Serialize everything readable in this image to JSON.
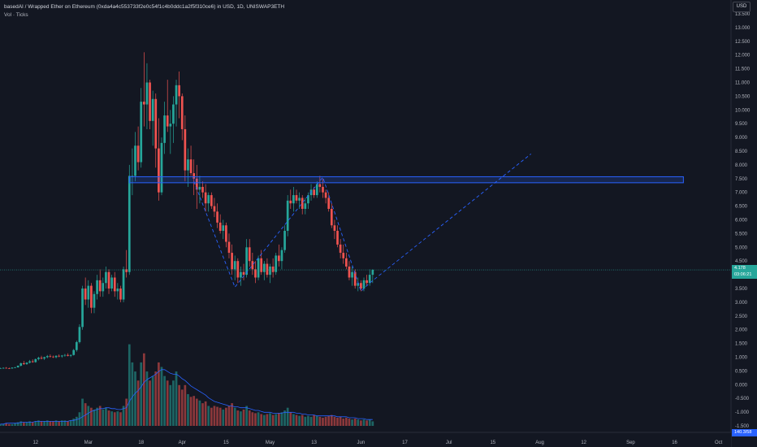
{
  "legend": {
    "title": "basedAI / Wrapped Ether on Ethereum (0xda4a4c553733f2e0c54f1c4b0ddc1a2f5f310ce6) in USD, 1D, UNISWAP3ETH",
    "subtitle": "Vol · Ticks"
  },
  "currency_button": "USD",
  "current_price": {
    "value": "4.178",
    "countdown": "03:06:21"
  },
  "volume_value": "140.3/58",
  "colors": {
    "up": "#26a69a",
    "down": "#ef5350",
    "up_volume": "#26a69a",
    "down_volume": "#ef5350",
    "drawing": "#2962ff",
    "volume_ma": "#2962ff",
    "background": "#131722"
  },
  "chart_data": {
    "type": "candlestick",
    "y_axis": {
      "min": -1.5,
      "max": 13.5,
      "step": 0.5,
      "labels": [
        "13.500",
        "13.000",
        "12.500",
        "12.000",
        "11.500",
        "11.000",
        "10.500",
        "10.000",
        "9.500",
        "9.000",
        "8.500",
        "8.000",
        "7.500",
        "7.000",
        "6.500",
        "6.000",
        "5.500",
        "5.000",
        "4.500",
        "4.000",
        "3.500",
        "3.000",
        "2.500",
        "2.000",
        "1.500",
        "1.000",
        "0.500",
        "0.000",
        "-0.500",
        "-1.000",
        "-1.500"
      ]
    },
    "x_axis": {
      "labels": [
        "12",
        "Mar",
        "18",
        "Apr",
        "15",
        "May",
        "13",
        "Jun",
        "17",
        "Jul",
        "15",
        "Aug",
        "12",
        "Sep",
        "16",
        "Oct"
      ],
      "label_days": [
        12,
        30,
        48,
        62,
        77,
        92,
        107,
        123,
        138,
        153,
        168,
        184,
        199,
        215,
        230,
        245
      ],
      "day_range": [
        0,
        248
      ]
    },
    "candles_note": "daily OHLC, day index from Feb 1",
    "candles": [
      [
        0,
        0.6,
        0.62,
        0.58,
        0.6
      ],
      [
        1,
        0.6,
        0.63,
        0.58,
        0.61
      ],
      [
        2,
        0.61,
        0.64,
        0.59,
        0.6
      ],
      [
        3,
        0.6,
        0.62,
        0.57,
        0.59
      ],
      [
        4,
        0.59,
        0.63,
        0.58,
        0.62
      ],
      [
        5,
        0.62,
        0.65,
        0.6,
        0.63
      ],
      [
        6,
        0.63,
        0.7,
        0.62,
        0.69
      ],
      [
        7,
        0.69,
        0.8,
        0.66,
        0.78
      ],
      [
        8,
        0.78,
        0.86,
        0.72,
        0.75
      ],
      [
        9,
        0.75,
        0.82,
        0.72,
        0.8
      ],
      [
        10,
        0.8,
        0.9,
        0.77,
        0.85
      ],
      [
        11,
        0.85,
        0.92,
        0.8,
        0.82
      ],
      [
        12,
        0.82,
        0.95,
        0.8,
        0.93
      ],
      [
        13,
        0.93,
        1.02,
        0.88,
        0.98
      ],
      [
        14,
        0.98,
        1.05,
        0.92,
        0.95
      ],
      [
        15,
        0.95,
        1.02,
        0.9,
        1.0
      ],
      [
        16,
        1.0,
        1.08,
        0.96,
        1.04
      ],
      [
        17,
        1.04,
        1.1,
        0.98,
        1.02
      ],
      [
        18,
        1.02,
        1.06,
        0.97,
        1.0
      ],
      [
        19,
        1.0,
        1.07,
        0.96,
        1.05
      ],
      [
        20,
        1.05,
        1.1,
        1.0,
        1.03
      ],
      [
        21,
        1.03,
        1.08,
        0.98,
        1.06
      ],
      [
        22,
        1.06,
        1.12,
        1.02,
        1.08
      ],
      [
        23,
        1.08,
        1.14,
        1.03,
        1.05
      ],
      [
        24,
        1.05,
        1.1,
        1.0,
        1.08
      ],
      [
        25,
        1.08,
        1.3,
        1.06,
        1.26
      ],
      [
        26,
        1.26,
        1.6,
        1.2,
        1.55
      ],
      [
        27,
        1.55,
        2.2,
        1.5,
        2.1
      ],
      [
        28,
        2.1,
        3.6,
        2.0,
        3.5
      ],
      [
        29,
        3.5,
        3.9,
        2.9,
        3.1
      ],
      [
        30,
        3.1,
        3.8,
        2.8,
        3.6
      ],
      [
        31,
        3.6,
        3.7,
        2.6,
        2.8
      ],
      [
        32,
        2.8,
        3.4,
        2.6,
        3.3
      ],
      [
        33,
        3.3,
        4.0,
        3.1,
        3.8
      ],
      [
        34,
        3.8,
        4.2,
        3.2,
        3.4
      ],
      [
        35,
        3.4,
        3.9,
        3.2,
        3.7
      ],
      [
        36,
        3.7,
        4.3,
        3.5,
        4.1
      ],
      [
        37,
        4.1,
        4.2,
        3.3,
        3.5
      ],
      [
        38,
        3.5,
        4.0,
        3.4,
        3.9
      ],
      [
        39,
        3.9,
        4.1,
        3.2,
        3.4
      ],
      [
        40,
        3.4,
        3.7,
        3.1,
        3.5
      ],
      [
        41,
        3.5,
        3.6,
        3.0,
        3.1
      ],
      [
        42,
        3.1,
        4.3,
        3.0,
        4.2
      ],
      [
        43,
        4.2,
        4.9,
        3.9,
        4.1
      ],
      [
        44,
        4.1,
        8.0,
        4.0,
        7.6
      ],
      [
        45,
        7.6,
        8.6,
        6.9,
        7.6
      ],
      [
        46,
        7.6,
        9.2,
        7.4,
        8.7
      ],
      [
        47,
        8.7,
        9.4,
        7.8,
        8.1
      ],
      [
        48,
        8.1,
        10.8,
        7.9,
        10.3
      ],
      [
        49,
        10.3,
        12.1,
        9.4,
        10.2
      ],
      [
        50,
        10.2,
        11.7,
        9.3,
        11.0
      ],
      [
        51,
        11.0,
        11.1,
        9.3,
        9.6
      ],
      [
        52,
        9.6,
        10.7,
        8.7,
        10.4
      ],
      [
        53,
        10.4,
        10.6,
        7.9,
        8.6
      ],
      [
        54,
        8.6,
        9.7,
        6.7,
        7.0
      ],
      [
        55,
        7.0,
        9.0,
        6.9,
        8.8
      ],
      [
        56,
        8.8,
        10.3,
        8.4,
        9.8
      ],
      [
        57,
        9.8,
        11.1,
        9.2,
        9.4
      ],
      [
        58,
        9.4,
        10.0,
        8.4,
        9.5
      ],
      [
        59,
        9.5,
        10.5,
        8.8,
        10.2
      ],
      [
        60,
        10.2,
        11.1,
        9.4,
        10.9
      ],
      [
        61,
        10.9,
        11.4,
        9.7,
        10.5
      ],
      [
        62,
        10.5,
        10.6,
        8.9,
        9.3
      ],
      [
        63,
        9.3,
        9.8,
        7.4,
        7.8
      ],
      [
        64,
        7.8,
        8.6,
        7.2,
        8.2
      ],
      [
        65,
        8.2,
        8.7,
        7.6,
        7.7
      ],
      [
        66,
        7.7,
        8.2,
        6.9,
        7.5
      ],
      [
        67,
        7.5,
        8.0,
        6.4,
        7.1
      ],
      [
        68,
        7.1,
        7.6,
        6.6,
        7.2
      ],
      [
        69,
        7.2,
        7.4,
        6.8,
        7.0
      ],
      [
        70,
        7.0,
        7.3,
        6.3,
        6.6
      ],
      [
        71,
        6.6,
        7.0,
        6.3,
        6.9
      ],
      [
        72,
        6.9,
        7.0,
        6.4,
        6.5
      ],
      [
        73,
        6.5,
        6.8,
        6.1,
        6.3
      ],
      [
        74,
        6.3,
        6.6,
        5.7,
        5.9
      ],
      [
        75,
        5.9,
        6.2,
        5.5,
        5.6
      ],
      [
        76,
        5.6,
        6.0,
        5.3,
        5.8
      ],
      [
        77,
        5.8,
        5.9,
        5.0,
        5.2
      ],
      [
        78,
        5.2,
        5.5,
        4.6,
        4.8
      ],
      [
        79,
        4.8,
        5.1,
        4.0,
        4.2
      ],
      [
        80,
        4.2,
        4.7,
        3.8,
        4.5
      ],
      [
        81,
        4.5,
        4.6,
        3.7,
        3.9
      ],
      [
        82,
        3.9,
        4.3,
        3.6,
        4.1
      ],
      [
        83,
        4.1,
        4.4,
        3.8,
        4.0
      ],
      [
        84,
        4.0,
        5.3,
        3.9,
        5.0
      ],
      [
        85,
        5.0,
        5.3,
        4.3,
        4.5
      ],
      [
        86,
        4.5,
        4.8,
        4.0,
        4.2
      ],
      [
        87,
        4.2,
        4.5,
        3.7,
        3.9
      ],
      [
        88,
        3.9,
        4.7,
        3.8,
        4.6
      ],
      [
        89,
        4.6,
        4.9,
        4.0,
        4.1
      ],
      [
        90,
        4.1,
        4.5,
        3.8,
        4.4
      ],
      [
        91,
        4.4,
        4.6,
        3.9,
        4.0
      ],
      [
        92,
        4.0,
        4.4,
        3.7,
        4.3
      ],
      [
        93,
        4.3,
        4.6,
        3.9,
        4.1
      ],
      [
        94,
        4.1,
        4.8,
        4.0,
        4.7
      ],
      [
        95,
        4.7,
        5.1,
        4.3,
        4.5
      ],
      [
        96,
        4.5,
        5.0,
        4.2,
        4.9
      ],
      [
        97,
        4.9,
        5.8,
        4.8,
        5.6
      ],
      [
        98,
        5.6,
        6.9,
        5.4,
        6.7
      ],
      [
        99,
        6.7,
        7.1,
        6.4,
        6.6
      ],
      [
        100,
        6.6,
        7.2,
        6.3,
        6.9
      ],
      [
        101,
        6.9,
        7.1,
        6.6,
        6.7
      ],
      [
        102,
        6.7,
        7.0,
        6.4,
        6.8
      ],
      [
        103,
        6.8,
        6.9,
        6.2,
        6.4
      ],
      [
        104,
        6.4,
        6.8,
        6.2,
        6.6
      ],
      [
        105,
        6.6,
        7.0,
        6.4,
        6.9
      ],
      [
        106,
        6.9,
        7.3,
        6.7,
        7.1
      ],
      [
        107,
        7.1,
        7.2,
        6.8,
        6.9
      ],
      [
        108,
        6.9,
        7.4,
        6.8,
        7.3
      ],
      [
        109,
        7.3,
        7.6,
        7.0,
        7.2
      ],
      [
        110,
        7.2,
        7.5,
        6.8,
        7.0
      ],
      [
        111,
        7.0,
        7.1,
        6.6,
        6.8
      ],
      [
        112,
        6.8,
        7.0,
        6.3,
        6.4
      ],
      [
        113,
        6.4,
        6.6,
        5.7,
        5.8
      ],
      [
        114,
        5.8,
        6.0,
        5.3,
        5.6
      ],
      [
        115,
        5.6,
        5.8,
        5.0,
        5.1
      ],
      [
        116,
        5.1,
        5.3,
        4.6,
        4.8
      ],
      [
        117,
        4.8,
        5.1,
        4.4,
        4.6
      ],
      [
        118,
        4.6,
        4.8,
        4.2,
        4.3
      ],
      [
        119,
        4.3,
        4.5,
        3.8,
        3.9
      ],
      [
        120,
        3.9,
        4.3,
        3.6,
        4.1
      ],
      [
        121,
        4.1,
        4.2,
        3.5,
        3.6
      ],
      [
        122,
        3.6,
        3.9,
        3.4,
        3.7
      ],
      [
        123,
        3.7,
        3.8,
        3.4,
        3.5
      ],
      [
        124,
        3.5,
        3.9,
        3.4,
        3.8
      ],
      [
        125,
        3.8,
        4.0,
        3.6,
        3.7
      ],
      [
        126,
        3.7,
        4.2,
        3.6,
        4.0
      ],
      [
        127,
        4.0,
        4.2,
        3.7,
        4.18
      ]
    ],
    "volume_note": "volume bars in price-axis units for overlay (baseline -1.5)",
    "volume": [
      0.02,
      0.02,
      0.03,
      0.02,
      0.02,
      0.03,
      0.04,
      0.05,
      0.04,
      0.04,
      0.05,
      0.04,
      0.05,
      0.06,
      0.05,
      0.05,
      0.06,
      0.05,
      0.05,
      0.06,
      0.05,
      0.06,
      0.06,
      0.05,
      0.06,
      0.08,
      0.1,
      0.15,
      0.3,
      0.25,
      0.22,
      0.2,
      0.18,
      0.2,
      0.22,
      0.18,
      0.2,
      0.17,
      0.16,
      0.15,
      0.16,
      0.15,
      0.22,
      0.3,
      0.9,
      0.7,
      0.6,
      0.5,
      0.7,
      0.8,
      0.6,
      0.5,
      0.55,
      0.6,
      0.7,
      0.65,
      0.55,
      0.5,
      0.45,
      0.5,
      0.6,
      0.45,
      0.4,
      0.45,
      0.35,
      0.32,
      0.33,
      0.3,
      0.28,
      0.25,
      0.27,
      0.22,
      0.2,
      0.22,
      0.21,
      0.2,
      0.18,
      0.2,
      0.22,
      0.25,
      0.2,
      0.17,
      0.16,
      0.18,
      0.22,
      0.17,
      0.15,
      0.14,
      0.15,
      0.13,
      0.12,
      0.13,
      0.14,
      0.12,
      0.13,
      0.14,
      0.15,
      0.17,
      0.2,
      0.15,
      0.13,
      0.12,
      0.11,
      0.12,
      0.1,
      0.11,
      0.1,
      0.12,
      0.11,
      0.1,
      0.09,
      0.1,
      0.11,
      0.12,
      0.1,
      0.09,
      0.1,
      0.08,
      0.09,
      0.08,
      0.07,
      0.08,
      0.07,
      0.06,
      0.07,
      0.06,
      0.07,
      0.05
    ],
    "volume_ma": [
      0.02,
      0.02,
      0.03,
      0.03,
      0.03,
      0.03,
      0.03,
      0.04,
      0.04,
      0.04,
      0.04,
      0.04,
      0.05,
      0.05,
      0.05,
      0.05,
      0.05,
      0.05,
      0.05,
      0.05,
      0.05,
      0.05,
      0.05,
      0.05,
      0.06,
      0.06,
      0.07,
      0.08,
      0.1,
      0.12,
      0.14,
      0.16,
      0.17,
      0.18,
      0.19,
      0.19,
      0.2,
      0.2,
      0.19,
      0.19,
      0.18,
      0.18,
      0.19,
      0.2,
      0.27,
      0.32,
      0.36,
      0.39,
      0.43,
      0.48,
      0.51,
      0.53,
      0.55,
      0.57,
      0.6,
      0.62,
      0.62,
      0.6,
      0.58,
      0.57,
      0.57,
      0.55,
      0.52,
      0.5,
      0.47,
      0.44,
      0.42,
      0.4,
      0.38,
      0.36,
      0.34,
      0.31,
      0.29,
      0.27,
      0.26,
      0.25,
      0.24,
      0.23,
      0.22,
      0.22,
      0.21,
      0.21,
      0.2,
      0.2,
      0.2,
      0.19,
      0.18,
      0.17,
      0.17,
      0.16,
      0.15,
      0.15,
      0.15,
      0.14,
      0.14,
      0.14,
      0.14,
      0.15,
      0.15,
      0.15,
      0.15,
      0.14,
      0.14,
      0.13,
      0.13,
      0.12,
      0.12,
      0.12,
      0.11,
      0.11,
      0.11,
      0.11,
      0.11,
      0.11,
      0.11,
      0.1,
      0.1,
      0.1,
      0.1,
      0.09,
      0.09,
      0.09,
      0.08,
      0.08,
      0.08,
      0.07,
      0.07,
      0.07
    ],
    "current_price_line": 4.178,
    "drawings": {
      "zone": {
        "day_start": 44,
        "day_end": 233,
        "price_low": 7.35,
        "price_high": 7.57
      },
      "dashed_path": [
        [
          66,
          7.4
        ],
        [
          80,
          3.55
        ],
        [
          110,
          7.55
        ],
        [
          123,
          3.4
        ],
        [
          126,
          3.7
        ],
        [
          181,
          8.4
        ]
      ]
    }
  }
}
